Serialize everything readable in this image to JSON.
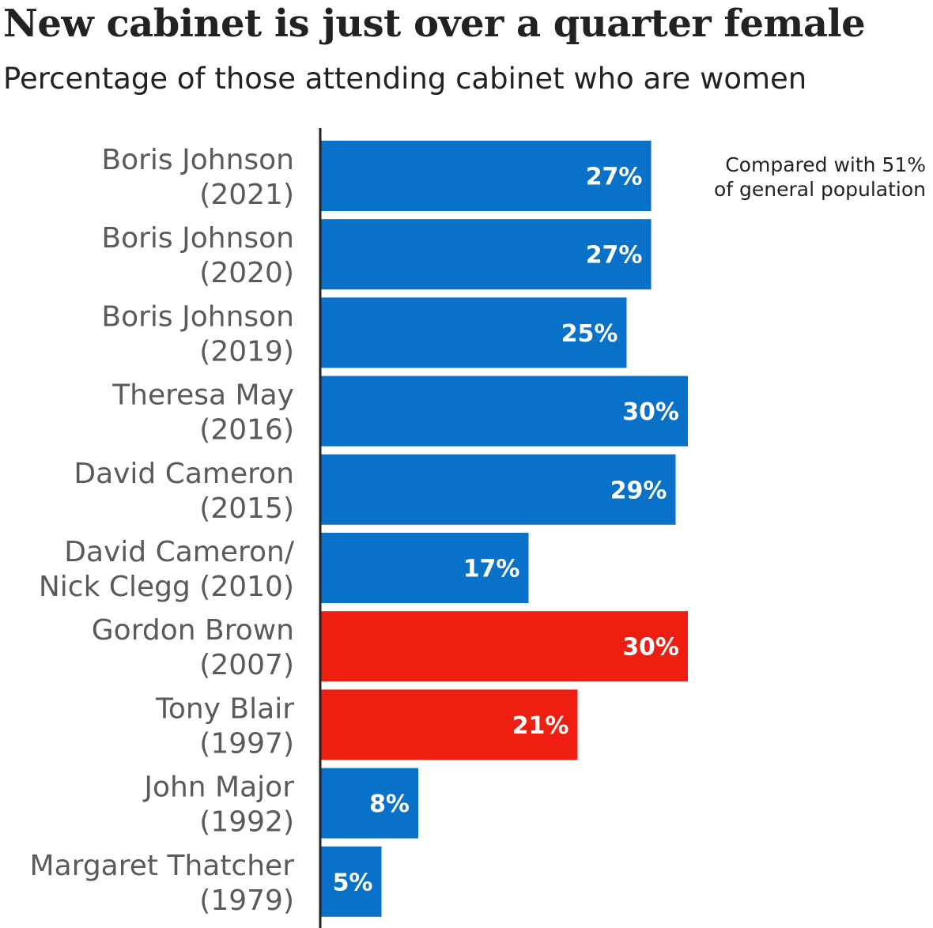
{
  "header": {
    "title": "New cabinet is just over a quarter female",
    "subtitle": "Percentage of those attending cabinet who are women"
  },
  "colors": {
    "conservative": "#0a71c9",
    "labour": "#ee1e11",
    "axis": "#222222"
  },
  "chart_data": {
    "type": "bar",
    "orientation": "horizontal",
    "title": "New cabinet is just over a quarter female",
    "subtitle": "Percentage of those attending cabinet who are women",
    "categories": [
      [
        "Boris Johnson",
        "(2021)"
      ],
      [
        "Boris Johnson",
        "(2020)"
      ],
      [
        "Boris Johnson",
        "(2019)"
      ],
      [
        "Theresa May",
        "(2016)"
      ],
      [
        "David Cameron",
        "(2015)"
      ],
      [
        "David Cameron/",
        "Nick Clegg (2010)"
      ],
      [
        "Gordon Brown",
        "(2007)"
      ],
      [
        "Tony Blair",
        "(1997)"
      ],
      [
        "John Major",
        "(1992)"
      ],
      [
        "Margaret Thatcher",
        "(1979)"
      ]
    ],
    "values": [
      27,
      27,
      25,
      30,
      29,
      17,
      30,
      21,
      8,
      5
    ],
    "value_labels": [
      "27%",
      "27%",
      "25%",
      "30%",
      "29%",
      "17%",
      "30%",
      "21%",
      "8%",
      "5%"
    ],
    "party": [
      "conservative",
      "conservative",
      "conservative",
      "conservative",
      "conservative",
      "conservative",
      "labour",
      "labour",
      "conservative",
      "conservative"
    ],
    "xlim": [
      0,
      30
    ],
    "annotation": [
      "Compared with 51%",
      "of general population"
    ],
    "grid": false
  }
}
